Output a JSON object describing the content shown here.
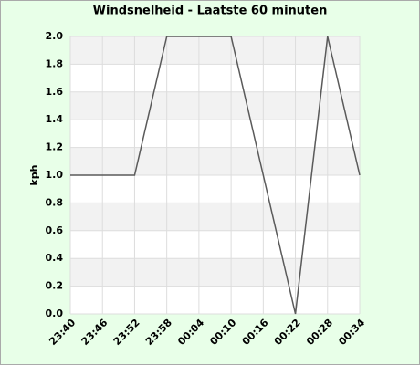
{
  "chart_data": {
    "type": "line",
    "title": "Windsnelheid - Laatste 60 minuten",
    "y_label": "kph",
    "categories": [
      "23:40",
      "23:46",
      "23:52",
      "23:58",
      "00:04",
      "00:10",
      "00:16",
      "00:22",
      "00:28",
      "00:34"
    ],
    "values": [
      1.0,
      1.0,
      1.0,
      2.0,
      2.0,
      2.0,
      1.0,
      0.0,
      2.0,
      1.0
    ],
    "color": "#5a5a5a",
    "ylim": [
      0,
      2
    ],
    "yticks": [
      {
        "value": 0,
        "label": "0.0"
      },
      0.2,
      0.4,
      0.6,
      0.8,
      {
        "value": 1,
        "label": "1.0"
      },
      1.2,
      1.4,
      1.6,
      1.8,
      {
        "value": 2,
        "label": "2.0"
      }
    ],
    "grid": true
  }
}
